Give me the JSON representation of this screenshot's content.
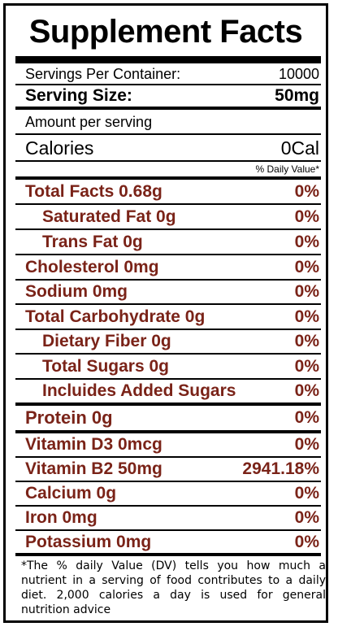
{
  "title": "Supplement Facts",
  "servings_per_container": {
    "label": "Servings Per Container:",
    "value": "10000"
  },
  "serving_size": {
    "label": "Serving Size:",
    "value": "50mg"
  },
  "amount_per_serving": "Amount per serving",
  "calories": {
    "label": "Calories",
    "value": "0Cal"
  },
  "daily_value_header": "% Daily Value*",
  "nutrients": [
    {
      "label": "Total Facts 0.68g",
      "dv": "0%"
    },
    {
      "label": "Saturated Fat 0g",
      "dv": "0%"
    },
    {
      "label": "Trans Fat 0g",
      "dv": "0%"
    },
    {
      "label": "Cholesterol 0mg",
      "dv": "0%"
    },
    {
      "label": "Sodium 0mg",
      "dv": "0%"
    },
    {
      "label": "Total Carbohydrate 0g",
      "dv": "0%"
    },
    {
      "label": "Dietary Fiber 0g",
      "dv": "0%"
    },
    {
      "label": "Total Sugars 0g",
      "dv": "0%"
    },
    {
      "label": "Incluides Added Sugars",
      "dv": "0%"
    },
    {
      "label": "Protein 0g",
      "dv": "0%"
    },
    {
      "label": "Vitamin D3 0mcg",
      "dv": "0%"
    },
    {
      "label": "Vitamin B2 50mg",
      "dv": "2941.18%"
    },
    {
      "label": "Calcium 0g",
      "dv": "0%"
    },
    {
      "label": "Iron 0mg",
      "dv": "0%"
    },
    {
      "label": "Potassium 0mg",
      "dv": "0%"
    }
  ],
  "footnote": "*The % daily Value (DV) tells you how much a nutrient in a serving of food contributes to a daily diet. 2,000 calories a day  is used for general nutrition advice",
  "colors": {
    "text": "#000000",
    "nutrient_text": "#7a2318",
    "border": "#000000"
  }
}
